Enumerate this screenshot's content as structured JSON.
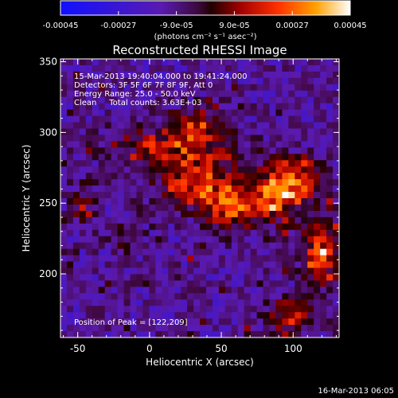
{
  "chart_data": {
    "type": "heatmap",
    "title": "Reconstructed RHESSI Image",
    "xlabel": "Heliocentric X (arcsec)",
    "ylabel": "Heliocentric Y (arcsec)",
    "xlim": [
      -62,
      132
    ],
    "ylim": [
      155,
      352
    ],
    "x_ticks": [
      -50,
      0,
      50,
      100
    ],
    "y_ticks": [
      200,
      250,
      300,
      350
    ],
    "colorbar": {
      "range": [
        -0.00045,
        0.00045
      ],
      "tick_labels": [
        "-0.00045",
        "-0.00027",
        "-9.0e-05",
        "9.0e-05",
        "0.00027",
        "0.00045"
      ],
      "tick_values": [
        -0.00045,
        -0.00027,
        -9e-05,
        9e-05,
        0.00027,
        0.00045
      ],
      "unit": "(photons cm⁻² s⁻¹ asec⁻²)"
    },
    "annotations": [
      "15-Mar-2013 19:40:04.000 to 19:41:24.000",
      "Detectors: 3F 5F 6F 7F 8F 9F, Att 0",
      "Energy Range: 25.0 - 50.0 keV",
      "Clean     Total counts: 3.63E+03"
    ],
    "peak_label": "Position of Peak = [122,209]",
    "peak_position": [
      122,
      209
    ],
    "sources": [
      {
        "x": 17,
        "y": 290,
        "sx": 26,
        "sy": 11,
        "amp": 0.00028
      },
      {
        "x": 35,
        "y": 262,
        "sx": 22,
        "sy": 12,
        "amp": 0.00034
      },
      {
        "x": 55,
        "y": 245,
        "sx": 10,
        "sy": 10,
        "amp": 0.0003
      },
      {
        "x": 85,
        "y": 253,
        "sx": 14,
        "sy": 13,
        "amp": 0.00034
      },
      {
        "x": 103,
        "y": 267,
        "sx": 12,
        "sy": 11,
        "amp": 0.00038
      },
      {
        "x": 120,
        "y": 215,
        "sx": 9,
        "sy": 16,
        "amp": 0.00042
      },
      {
        "x": 98,
        "y": 170,
        "sx": 13,
        "sy": 8,
        "amp": 0.0003
      },
      {
        "x": -47,
        "y": 250,
        "sx": 7,
        "sy": 9,
        "amp": 0.0002
      },
      {
        "x": 33,
        "y": 306,
        "sx": 12,
        "sy": 8,
        "amp": 0.00022
      },
      {
        "x": -15,
        "y": 225,
        "sx": 8,
        "sy": 7,
        "amp": 0.00012
      }
    ]
  },
  "footer": {
    "timestamp": "16-Mar-2013 06:05"
  }
}
